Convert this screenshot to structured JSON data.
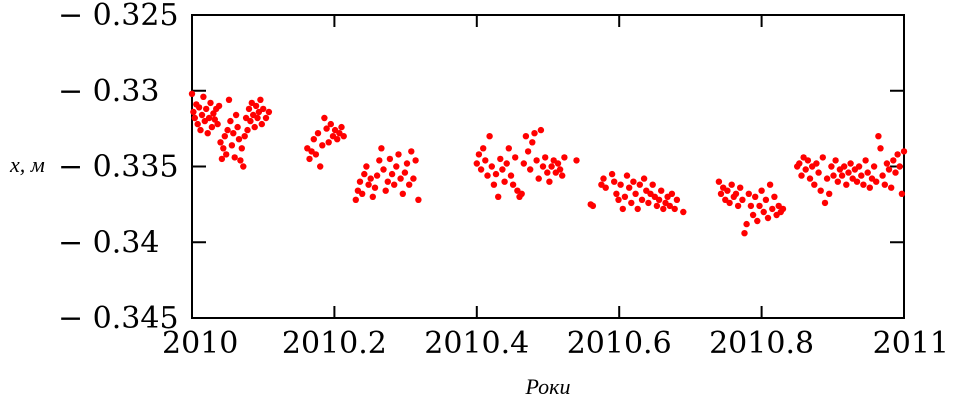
{
  "chart_data": {
    "type": "scatter",
    "xlabel": "Роки",
    "ylabel": "x, м",
    "xlim": [
      2010,
      2011
    ],
    "ylim": [
      -0.345,
      -0.325
    ],
    "x_ticks": [
      {
        "value": 2010,
        "label": "2010"
      },
      {
        "value": 2010.2,
        "label": "2010.2"
      },
      {
        "value": 2010.4,
        "label": "2010.4"
      },
      {
        "value": 2010.6,
        "label": "2010.6"
      },
      {
        "value": 2010.8,
        "label": "2010.8"
      },
      {
        "value": 2011,
        "label": "2011"
      }
    ],
    "y_ticks": [
      {
        "value": -0.325,
        "label": "− 0.325"
      },
      {
        "value": -0.33,
        "label": "− 0.33"
      },
      {
        "value": -0.335,
        "label": "− 0.335"
      },
      {
        "value": -0.34,
        "label": "− 0.34"
      },
      {
        "value": -0.345,
        "label": "− 0.345"
      }
    ],
    "grid": false,
    "marker_color": "#ff0000",
    "series": [
      {
        "points": [
          [
            2010.0,
            -0.3302
          ],
          [
            2010.002,
            -0.3314
          ],
          [
            2010.004,
            -0.3318
          ],
          [
            2010.006,
            -0.3309
          ],
          [
            2010.008,
            -0.3322
          ],
          [
            2010.01,
            -0.3311
          ],
          [
            2010.012,
            -0.3326
          ],
          [
            2010.014,
            -0.3316
          ],
          [
            2010.016,
            -0.3304
          ],
          [
            2010.018,
            -0.332
          ],
          [
            2010.02,
            -0.3312
          ],
          [
            2010.022,
            -0.3328
          ],
          [
            2010.024,
            -0.3318
          ],
          [
            2010.026,
            -0.3308
          ],
          [
            2010.028,
            -0.3324
          ],
          [
            2010.03,
            -0.3315
          ],
          [
            2010.032,
            -0.3319
          ],
          [
            2010.034,
            -0.3312
          ],
          [
            2010.036,
            -0.3322
          ],
          [
            2010.038,
            -0.331
          ],
          [
            2010.04,
            -0.3334
          ],
          [
            2010.042,
            -0.3345
          ],
          [
            2010.044,
            -0.3338
          ],
          [
            2010.046,
            -0.333
          ],
          [
            2010.048,
            -0.3342
          ],
          [
            2010.05,
            -0.3326
          ],
          [
            2010.052,
            -0.3306
          ],
          [
            2010.054,
            -0.332
          ],
          [
            2010.056,
            -0.3336
          ],
          [
            2010.058,
            -0.3328
          ],
          [
            2010.06,
            -0.3344
          ],
          [
            2010.062,
            -0.3316
          ],
          [
            2010.064,
            -0.3324
          ],
          [
            2010.066,
            -0.3332
          ],
          [
            2010.068,
            -0.3346
          ],
          [
            2010.07,
            -0.3338
          ],
          [
            2010.072,
            -0.335
          ],
          [
            2010.074,
            -0.333
          ],
          [
            2010.076,
            -0.3318
          ],
          [
            2010.078,
            -0.3326
          ],
          [
            2010.08,
            -0.3312
          ],
          [
            2010.082,
            -0.332
          ],
          [
            2010.084,
            -0.3308
          ],
          [
            2010.086,
            -0.3316
          ],
          [
            2010.088,
            -0.3324
          ],
          [
            2010.09,
            -0.331
          ],
          [
            2010.092,
            -0.3318
          ],
          [
            2010.094,
            -0.3314
          ],
          [
            2010.096,
            -0.3306
          ],
          [
            2010.098,
            -0.3322
          ],
          [
            2010.1,
            -0.3312
          ],
          [
            2010.104,
            -0.3318
          ],
          [
            2010.108,
            -0.3314
          ],
          [
            2010.162,
            -0.3338
          ],
          [
            2010.165,
            -0.3345
          ],
          [
            2010.168,
            -0.334
          ],
          [
            2010.171,
            -0.3332
          ],
          [
            2010.174,
            -0.3342
          ],
          [
            2010.177,
            -0.3328
          ],
          [
            2010.18,
            -0.335
          ],
          [
            2010.183,
            -0.3336
          ],
          [
            2010.186,
            -0.3318
          ],
          [
            2010.189,
            -0.3325
          ],
          [
            2010.192,
            -0.3334
          ],
          [
            2010.195,
            -0.3322
          ],
          [
            2010.198,
            -0.333
          ],
          [
            2010.201,
            -0.3326
          ],
          [
            2010.204,
            -0.3332
          ],
          [
            2010.207,
            -0.3328
          ],
          [
            2010.21,
            -0.3324
          ],
          [
            2010.213,
            -0.333
          ],
          [
            2010.23,
            -0.3372
          ],
          [
            2010.233,
            -0.3366
          ],
          [
            2010.236,
            -0.336
          ],
          [
            2010.239,
            -0.3368
          ],
          [
            2010.242,
            -0.3355
          ],
          [
            2010.245,
            -0.335
          ],
          [
            2010.248,
            -0.3362
          ],
          [
            2010.251,
            -0.3358
          ],
          [
            2010.254,
            -0.337
          ],
          [
            2010.257,
            -0.3364
          ],
          [
            2010.26,
            -0.3356
          ],
          [
            2010.263,
            -0.3346
          ],
          [
            2010.266,
            -0.3338
          ],
          [
            2010.269,
            -0.3352
          ],
          [
            2010.272,
            -0.3366
          ],
          [
            2010.275,
            -0.336
          ],
          [
            2010.278,
            -0.3345
          ],
          [
            2010.281,
            -0.3355
          ],
          [
            2010.284,
            -0.3362
          ],
          [
            2010.287,
            -0.335
          ],
          [
            2010.29,
            -0.3342
          ],
          [
            2010.293,
            -0.3358
          ],
          [
            2010.296,
            -0.3368
          ],
          [
            2010.299,
            -0.3354
          ],
          [
            2010.302,
            -0.3348
          ],
          [
            2010.305,
            -0.3362
          ],
          [
            2010.308,
            -0.334
          ],
          [
            2010.311,
            -0.3358
          ],
          [
            2010.314,
            -0.3346
          ],
          [
            2010.318,
            -0.3372
          ],
          [
            2010.4,
            -0.3348
          ],
          [
            2010.403,
            -0.3342
          ],
          [
            2010.406,
            -0.3352
          ],
          [
            2010.409,
            -0.3338
          ],
          [
            2010.412,
            -0.3346
          ],
          [
            2010.415,
            -0.3356
          ],
          [
            2010.418,
            -0.333
          ],
          [
            2010.421,
            -0.335
          ],
          [
            2010.424,
            -0.3362
          ],
          [
            2010.427,
            -0.3355
          ],
          [
            2010.43,
            -0.337
          ],
          [
            2010.433,
            -0.3345
          ],
          [
            2010.436,
            -0.3352
          ],
          [
            2010.439,
            -0.336
          ],
          [
            2010.442,
            -0.3348
          ],
          [
            2010.445,
            -0.3338
          ],
          [
            2010.448,
            -0.3356
          ],
          [
            2010.451,
            -0.3362
          ],
          [
            2010.454,
            -0.3344
          ],
          [
            2010.457,
            -0.3366
          ],
          [
            2010.46,
            -0.337
          ],
          [
            2010.463,
            -0.3368
          ],
          [
            2010.466,
            -0.3348
          ],
          [
            2010.469,
            -0.333
          ],
          [
            2010.472,
            -0.334
          ],
          [
            2010.475,
            -0.3352
          ],
          [
            2010.478,
            -0.3334
          ],
          [
            2010.481,
            -0.3328
          ],
          [
            2010.484,
            -0.3346
          ],
          [
            2010.487,
            -0.3358
          ],
          [
            2010.49,
            -0.3326
          ],
          [
            2010.493,
            -0.335
          ],
          [
            2010.496,
            -0.3344
          ],
          [
            2010.499,
            -0.3354
          ],
          [
            2010.502,
            -0.336
          ],
          [
            2010.505,
            -0.335
          ],
          [
            2010.508,
            -0.3346
          ],
          [
            2010.511,
            -0.3354
          ],
          [
            2010.514,
            -0.3348
          ],
          [
            2010.517,
            -0.3352
          ],
          [
            2010.52,
            -0.3356
          ],
          [
            2010.523,
            -0.3344
          ],
          [
            2010.54,
            -0.3346
          ],
          [
            2010.56,
            -0.3375
          ],
          [
            2010.563,
            -0.3376
          ],
          [
            2010.575,
            -0.3362
          ],
          [
            2010.578,
            -0.3358
          ],
          [
            2010.581,
            -0.3364
          ],
          [
            2010.59,
            -0.3355
          ],
          [
            2010.593,
            -0.336
          ],
          [
            2010.596,
            -0.3368
          ],
          [
            2010.599,
            -0.3372
          ],
          [
            2010.602,
            -0.3362
          ],
          [
            2010.605,
            -0.3378
          ],
          [
            2010.608,
            -0.337
          ],
          [
            2010.611,
            -0.3356
          ],
          [
            2010.614,
            -0.3364
          ],
          [
            2010.617,
            -0.3374
          ],
          [
            2010.62,
            -0.336
          ],
          [
            2010.623,
            -0.3368
          ],
          [
            2010.626,
            -0.3378
          ],
          [
            2010.629,
            -0.3362
          ],
          [
            2010.632,
            -0.3372
          ],
          [
            2010.635,
            -0.3358
          ],
          [
            2010.638,
            -0.3366
          ],
          [
            2010.641,
            -0.3374
          ],
          [
            2010.644,
            -0.3368
          ],
          [
            2010.647,
            -0.3362
          ],
          [
            2010.65,
            -0.337
          ],
          [
            2010.653,
            -0.3376
          ],
          [
            2010.656,
            -0.3372
          ],
          [
            2010.659,
            -0.3366
          ],
          [
            2010.662,
            -0.3378
          ],
          [
            2010.665,
            -0.3374
          ],
          [
            2010.668,
            -0.337
          ],
          [
            2010.671,
            -0.3376
          ],
          [
            2010.674,
            -0.3368
          ],
          [
            2010.678,
            -0.3378
          ],
          [
            2010.681,
            -0.3372
          ],
          [
            2010.69,
            -0.338
          ],
          [
            2010.74,
            -0.336
          ],
          [
            2010.743,
            -0.3368
          ],
          [
            2010.746,
            -0.3364
          ],
          [
            2010.749,
            -0.3372
          ],
          [
            2010.752,
            -0.3366
          ],
          [
            2010.755,
            -0.3374
          ],
          [
            2010.758,
            -0.3362
          ],
          [
            2010.761,
            -0.337
          ],
          [
            2010.764,
            -0.3368
          ],
          [
            2010.767,
            -0.3376
          ],
          [
            2010.77,
            -0.3364
          ],
          [
            2010.773,
            -0.3372
          ],
          [
            2010.776,
            -0.3394
          ],
          [
            2010.779,
            -0.3388
          ],
          [
            2010.782,
            -0.3368
          ],
          [
            2010.785,
            -0.3376
          ],
          [
            2010.788,
            -0.3382
          ],
          [
            2010.791,
            -0.337
          ],
          [
            2010.794,
            -0.3386
          ],
          [
            2010.797,
            -0.3376
          ],
          [
            2010.8,
            -0.3366
          ],
          [
            2010.803,
            -0.338
          ],
          [
            2010.806,
            -0.3372
          ],
          [
            2010.809,
            -0.3384
          ],
          [
            2010.812,
            -0.3362
          ],
          [
            2010.815,
            -0.3378
          ],
          [
            2010.818,
            -0.337
          ],
          [
            2010.821,
            -0.3382
          ],
          [
            2010.824,
            -0.3376
          ],
          [
            2010.827,
            -0.338
          ],
          [
            2010.83,
            -0.3378
          ],
          [
            2010.85,
            -0.335
          ],
          [
            2010.853,
            -0.3348
          ],
          [
            2010.856,
            -0.3356
          ],
          [
            2010.859,
            -0.3344
          ],
          [
            2010.862,
            -0.3352
          ],
          [
            2010.865,
            -0.3346
          ],
          [
            2010.868,
            -0.3358
          ],
          [
            2010.871,
            -0.335
          ],
          [
            2010.874,
            -0.3362
          ],
          [
            2010.877,
            -0.3348
          ],
          [
            2010.88,
            -0.3354
          ],
          [
            2010.883,
            -0.3366
          ],
          [
            2010.886,
            -0.3344
          ],
          [
            2010.889,
            -0.3374
          ],
          [
            2010.892,
            -0.3358
          ],
          [
            2010.895,
            -0.3368
          ],
          [
            2010.898,
            -0.335
          ],
          [
            2010.901,
            -0.3356
          ],
          [
            2010.904,
            -0.3346
          ],
          [
            2010.907,
            -0.336
          ],
          [
            2010.91,
            -0.3352
          ],
          [
            2010.913,
            -0.3356
          ],
          [
            2010.916,
            -0.335
          ],
          [
            2010.919,
            -0.3362
          ],
          [
            2010.922,
            -0.3354
          ],
          [
            2010.925,
            -0.3348
          ],
          [
            2010.928,
            -0.3358
          ],
          [
            2010.931,
            -0.3352
          ],
          [
            2010.934,
            -0.336
          ],
          [
            2010.937,
            -0.335
          ],
          [
            2010.94,
            -0.3356
          ],
          [
            2010.943,
            -0.3362
          ],
          [
            2010.946,
            -0.3346
          ],
          [
            2010.949,
            -0.3354
          ],
          [
            2010.952,
            -0.3364
          ],
          [
            2010.955,
            -0.3358
          ],
          [
            2010.958,
            -0.335
          ],
          [
            2010.961,
            -0.336
          ],
          [
            2010.964,
            -0.333
          ],
          [
            2010.967,
            -0.3338
          ],
          [
            2010.97,
            -0.3356
          ],
          [
            2010.973,
            -0.3362
          ],
          [
            2010.976,
            -0.3348
          ],
          [
            2010.979,
            -0.3352
          ],
          [
            2010.982,
            -0.3364
          ],
          [
            2010.985,
            -0.3346
          ],
          [
            2010.988,
            -0.3354
          ],
          [
            2010.991,
            -0.3342
          ],
          [
            2010.994,
            -0.335
          ],
          [
            2010.997,
            -0.3368
          ],
          [
            2011.0,
            -0.334
          ]
        ]
      }
    ]
  }
}
